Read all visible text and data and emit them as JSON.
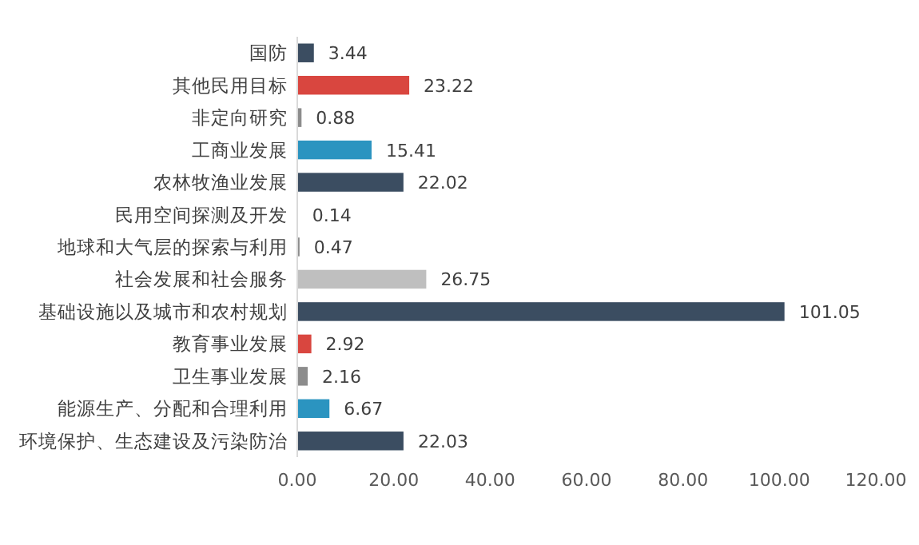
{
  "chart_data": {
    "type": "bar",
    "orientation": "horizontal",
    "categories": [
      "国防",
      "其他民用目标",
      "非定向研究",
      "工商业发展",
      "农林牧渔业发展",
      "民用空间探测及开发",
      "地球和大气层的探索与利用",
      "社会发展和社会服务",
      "基础设施以及城市和农村规划",
      "教育事业发展",
      "卫生事业发展",
      "能源生产、分配和合理利用",
      "环境保护、生态建设及污染防治"
    ],
    "values": [
      3.44,
      23.22,
      0.88,
      15.41,
      22.02,
      0.14,
      0.47,
      26.75,
      101.05,
      2.92,
      2.16,
      6.67,
      22.03
    ],
    "colors": [
      "#3b4d61",
      "#d9463f",
      "#8c8c8c",
      "#2b94c0",
      "#3b4d61",
      "#8c8c8c",
      "#8c8c8c",
      "#bfbfbf",
      "#3b4d61",
      "#d9463f",
      "#8c8c8c",
      "#2b94c0",
      "#3b4d61"
    ],
    "value_labels": [
      "3.44",
      "23.22",
      "0.88",
      "15.41",
      "22.02",
      "0.14",
      "0.47",
      "26.75",
      "101.05",
      "2.92",
      "2.16",
      "6.67",
      "22.03"
    ],
    "xlim": [
      0,
      120
    ],
    "xticks": [
      {
        "value": 0,
        "label": "0.00"
      },
      {
        "value": 20,
        "label": "20.00"
      },
      {
        "value": 40,
        "label": "40.00"
      },
      {
        "value": 60,
        "label": "60.00"
      },
      {
        "value": 80,
        "label": "80.00"
      },
      {
        "value": 100,
        "label": "100.00"
      },
      {
        "value": 120,
        "label": "120.00"
      }
    ],
    "grid": false
  }
}
